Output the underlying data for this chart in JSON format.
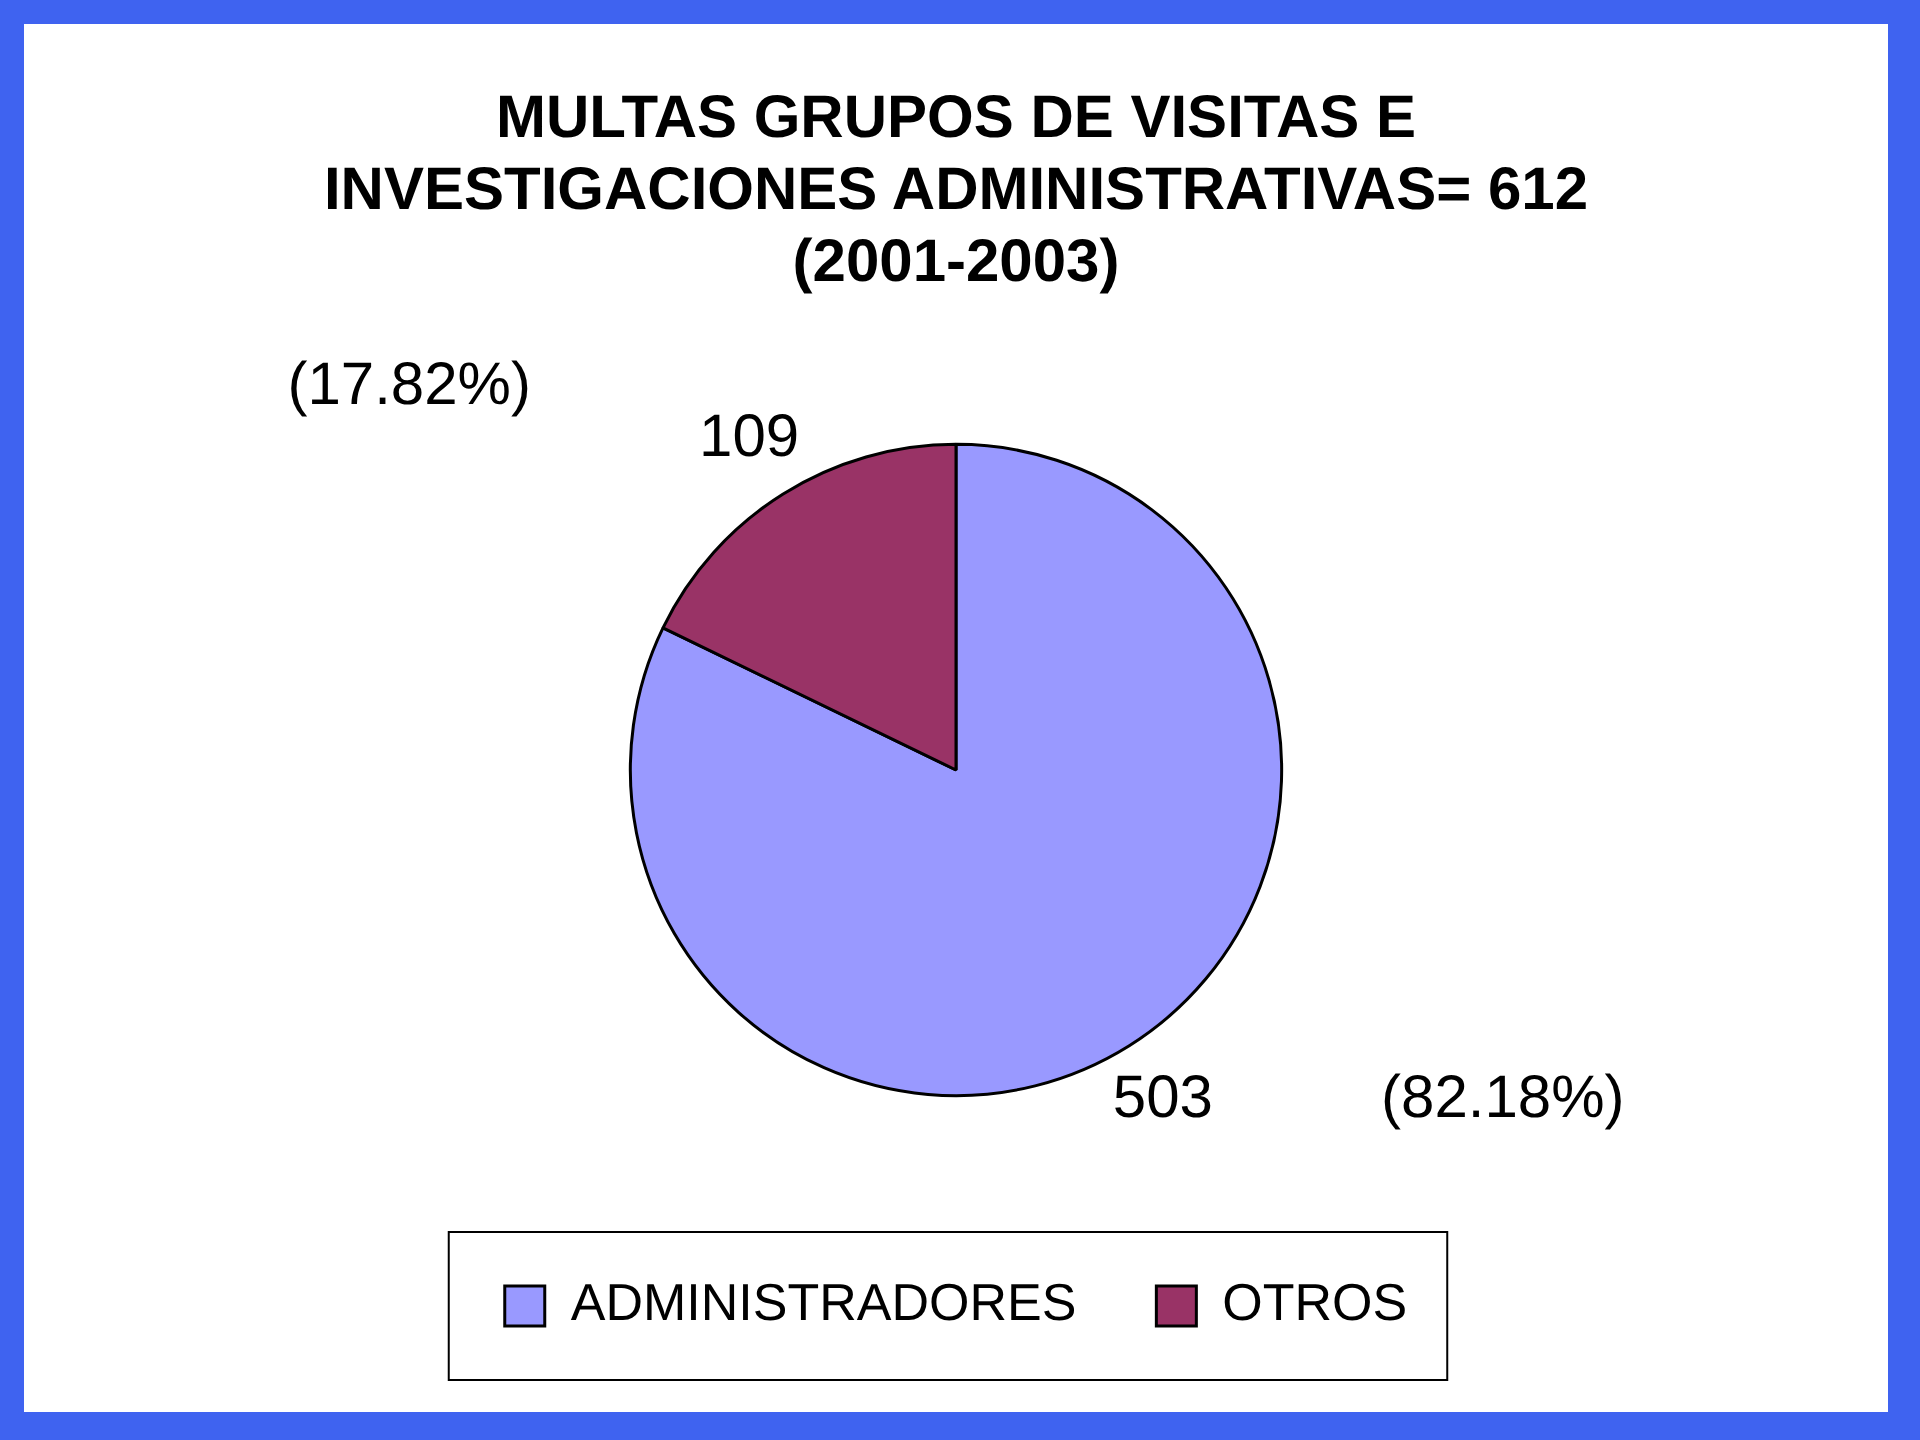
{
  "chart_data": {
    "type": "pie",
    "title": "MULTAS GRUPOS DE VISITAS E\nINVESTIGACIONES ADMINISTRATIVAS= 612\n(2001-2003)",
    "categories": [
      "ADMINISTRADORES",
      "OTROS"
    ],
    "values": [
      503,
      109
    ],
    "colors": [
      "#9999ff",
      "#993366"
    ],
    "data_labels": true,
    "annotations": [
      "(82.18%)",
      "(17.82%)"
    ],
    "legend": "bottom"
  }
}
